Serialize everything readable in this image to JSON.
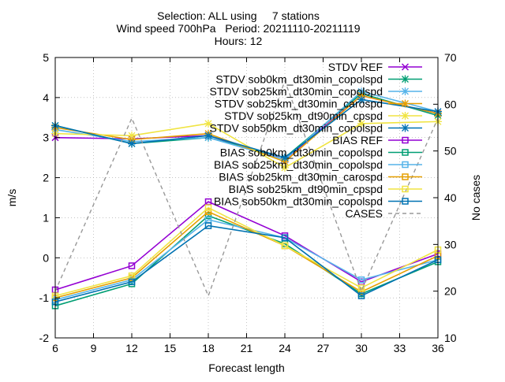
{
  "chart_data": {
    "type": "line",
    "title_lines": [
      "Selection: ALL using     7 stations",
      "Wind speed 700hPa   Period: 20211110-20211119",
      "Hours: 12"
    ],
    "xlabel": "Forecast length",
    "ylabel": "m/s",
    "y2label": "No cases",
    "xlim": [
      6,
      36
    ],
    "ylim": [
      -2,
      5
    ],
    "y2lim": [
      10,
      70
    ],
    "xticks": [
      6,
      9,
      12,
      15,
      18,
      21,
      24,
      27,
      30,
      33,
      36
    ],
    "yticks": [
      -2,
      -1,
      0,
      1,
      2,
      3,
      4,
      5
    ],
    "y2ticks": [
      10,
      20,
      30,
      40,
      50,
      60,
      70
    ],
    "legend_position": "top-right",
    "x": [
      6,
      12,
      18,
      24,
      30,
      36
    ],
    "series": [
      {
        "name": "STDV REF",
        "color": "#9400d3",
        "marker": "x",
        "axis": "y",
        "values": [
          3.0,
          2.97,
          3.05,
          2.45,
          4.05,
          3.6
        ]
      },
      {
        "name": "STDV sob0km_dt30min_copolspd",
        "color": "#009e73",
        "marker": "star",
        "axis": "y",
        "values": [
          3.3,
          2.85,
          3.0,
          2.5,
          4.1,
          3.55
        ]
      },
      {
        "name": "STDV sob25km_dt30min_copolspd",
        "color": "#56b4e9",
        "marker": "star",
        "axis": "y",
        "values": [
          3.2,
          2.9,
          3.0,
          2.45,
          4.15,
          3.65
        ]
      },
      {
        "name": "STDV sob25km_dt30min_carospd",
        "color": "#e69f00",
        "marker": "star",
        "axis": "y",
        "values": [
          3.25,
          2.95,
          3.1,
          2.4,
          4.05,
          3.6
        ]
      },
      {
        "name": "STDV sob25km_dt90min_cpspd",
        "color": "#f0e442",
        "marker": "star",
        "axis": "y",
        "values": [
          3.1,
          3.05,
          3.35,
          2.25,
          3.35,
          3.4
        ]
      },
      {
        "name": "STDV sob50km_dt30min_copolspd",
        "color": "#0072b2",
        "marker": "star",
        "axis": "y",
        "values": [
          3.3,
          2.85,
          3.05,
          2.5,
          3.95,
          3.65
        ]
      },
      {
        "name": "BIAS REF",
        "color": "#9400d3",
        "marker": "square",
        "axis": "y",
        "values": [
          -0.8,
          -0.2,
          1.4,
          0.55,
          -0.6,
          0.1
        ]
      },
      {
        "name": "BIAS sob0km_dt30min_copolspd",
        "color": "#009e73",
        "marker": "square",
        "axis": "y",
        "values": [
          -1.2,
          -0.65,
          1.05,
          0.35,
          -0.9,
          -0.1
        ]
      },
      {
        "name": "BIAS sob25km_dt30min_copolspd",
        "color": "#56b4e9",
        "marker": "square",
        "axis": "y",
        "values": [
          -1.05,
          -0.55,
          0.95,
          0.5,
          -0.55,
          -0.05
        ]
      },
      {
        "name": "BIAS sob25km_dt30min_carospd",
        "color": "#e69f00",
        "marker": "square",
        "axis": "y",
        "values": [
          -1.0,
          -0.5,
          1.15,
          0.3,
          -0.85,
          0.05
        ]
      },
      {
        "name": "BIAS sob25km_dt90min_cpspd",
        "color": "#f0e442",
        "marker": "square",
        "axis": "y",
        "values": [
          -0.95,
          -0.45,
          1.25,
          0.3,
          -0.75,
          0.2
        ]
      },
      {
        "name": "BIAS sob50km_dt30min_copolspd",
        "color": "#0072b2",
        "marker": "square",
        "axis": "y",
        "values": [
          -1.1,
          -0.6,
          0.8,
          0.5,
          -0.95,
          -0.05
        ]
      },
      {
        "name": "CASES",
        "color": "#999999",
        "marker": "none",
        "dash": true,
        "axis": "y2",
        "values": [
          20,
          57,
          19,
          65,
          20,
          57
        ]
      }
    ]
  }
}
